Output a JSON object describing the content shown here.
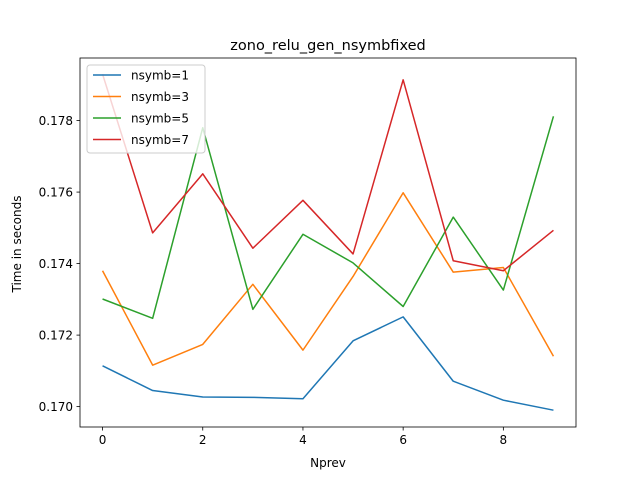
{
  "chart_data": {
    "type": "line",
    "title": "zono_relu_gen_nsymbfixed",
    "xlabel": "Nprev",
    "ylabel": "Time in seconds",
    "xlim": [
      -0.45,
      9.45
    ],
    "ylim": [
      0.16943,
      0.17975
    ],
    "xticks": [
      0,
      2,
      4,
      6,
      8
    ],
    "xtick_labels": [
      "0",
      "2",
      "4",
      "6",
      "8"
    ],
    "yticks": [
      0.17,
      0.172,
      0.174,
      0.176,
      0.178
    ],
    "ytick_labels": [
      "0.170",
      "0.172",
      "0.174",
      "0.176",
      "0.178"
    ],
    "grid": false,
    "legend_position": "top-left",
    "x": [
      0,
      1,
      2,
      3,
      4,
      5,
      6,
      7,
      8,
      9
    ],
    "series": [
      {
        "name": "nsymb=1",
        "color": "#1f77b4",
        "values": [
          0.17114,
          0.17045,
          0.17027,
          0.17026,
          0.17022,
          0.17184,
          0.17251,
          0.17071,
          0.17018,
          0.1699
        ]
      },
      {
        "name": "nsymb=3",
        "color": "#ff7f0e",
        "values": [
          0.1738,
          0.17116,
          0.17174,
          0.17342,
          0.17158,
          0.17364,
          0.17598,
          0.17376,
          0.17389,
          0.17141
        ]
      },
      {
        "name": "nsymb=5",
        "color": "#2ca02c",
        "values": [
          0.17301,
          0.17247,
          0.1778,
          0.17272,
          0.17482,
          0.17402,
          0.1728,
          0.1753,
          0.17326,
          0.17812
        ]
      },
      {
        "name": "nsymb=7",
        "color": "#d62728",
        "values": [
          0.1793,
          0.17486,
          0.17651,
          0.17443,
          0.17577,
          0.17427,
          0.17914,
          0.17408,
          0.1738,
          0.17493
        ]
      }
    ]
  }
}
